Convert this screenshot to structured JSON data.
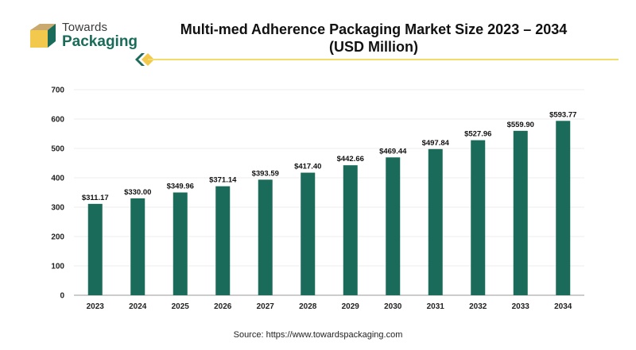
{
  "brand": {
    "line1": "Towards",
    "line2": "Packaging",
    "colors": {
      "green": "#1a6b5a",
      "yellow": "#f2c94c",
      "tan": "#c9a96e"
    }
  },
  "header": {
    "title_line1": "Multi-med Adherence Packaging Market Size 2023 – 2034",
    "title_line2": "(USD Million)"
  },
  "footer": {
    "source": "Source: https://www.towardspackaging.com"
  },
  "chart_data": {
    "type": "bar",
    "title": "Multi-med Adherence Packaging Market Size 2023 – 2034 (USD Million)",
    "categories": [
      "2023",
      "2024",
      "2025",
      "2026",
      "2027",
      "2028",
      "2029",
      "2030",
      "2031",
      "2032",
      "2033",
      "2034"
    ],
    "values": [
      311.17,
      330.0,
      349.96,
      371.14,
      393.59,
      417.4,
      442.66,
      469.44,
      497.84,
      527.96,
      559.9,
      593.77
    ],
    "value_labels": [
      "$311.17",
      "$330.00",
      "$349.96",
      "$371.14",
      "$393.59",
      "$417.40",
      "$442.66",
      "$469.44",
      "$497.84",
      "$527.96",
      "$559.90",
      "$593.77"
    ],
    "ylim": [
      0,
      700
    ],
    "yticks": [
      0,
      100,
      200,
      300,
      400,
      500,
      600,
      700
    ],
    "xlabel": "",
    "ylabel": "",
    "bar_color": "#1a6b5a",
    "grid": true,
    "legend": "none"
  }
}
